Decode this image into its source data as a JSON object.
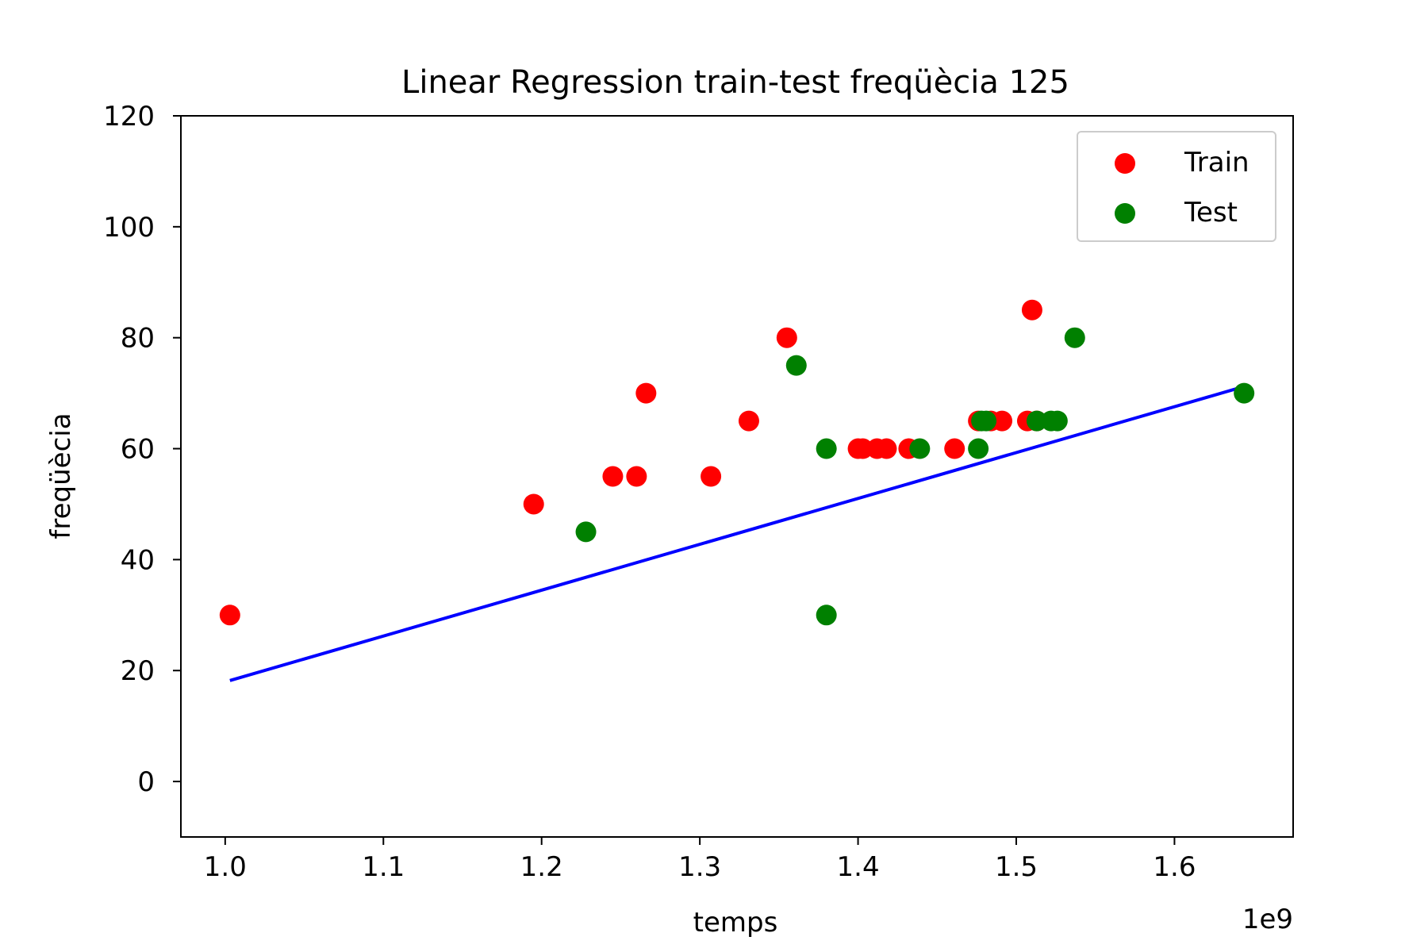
{
  "chart_data": {
    "type": "scatter",
    "title": "Linear Regression train-test freqüècia 125",
    "xlabel": "temps",
    "ylabel": "freqüècia",
    "x_offset_label": "1e9",
    "xlim": [
      0.972,
      1.675
    ],
    "ylim": [
      -10,
      120
    ],
    "x_ticks": [
      1.0,
      1.1,
      1.2,
      1.3,
      1.4,
      1.5,
      1.6
    ],
    "x_tick_labels": [
      "1.0",
      "1.1",
      "1.2",
      "1.3",
      "1.4",
      "1.5",
      "1.6"
    ],
    "y_ticks": [
      0,
      20,
      40,
      60,
      80,
      100,
      120
    ],
    "y_tick_labels": [
      "0",
      "20",
      "40",
      "60",
      "80",
      "100",
      "120"
    ],
    "grid": false,
    "legend": {
      "position": "top-right",
      "entries": [
        "Train",
        "Test"
      ]
    },
    "series": [
      {
        "name": "Train",
        "color": "#ff0000",
        "points": [
          [
            1.003,
            30
          ],
          [
            1.195,
            50
          ],
          [
            1.245,
            55
          ],
          [
            1.26,
            55
          ],
          [
            1.266,
            70
          ],
          [
            1.307,
            55
          ],
          [
            1.331,
            65
          ],
          [
            1.355,
            80
          ],
          [
            1.4,
            60
          ],
          [
            1.403,
            60
          ],
          [
            1.412,
            60
          ],
          [
            1.418,
            60
          ],
          [
            1.432,
            60
          ],
          [
            1.461,
            60
          ],
          [
            1.476,
            65
          ],
          [
            1.484,
            65
          ],
          [
            1.491,
            65
          ],
          [
            1.507,
            65
          ],
          [
            1.51,
            85
          ],
          [
            1.513,
            65
          ]
        ]
      },
      {
        "name": "Test",
        "color": "#008000",
        "points": [
          [
            1.228,
            45
          ],
          [
            1.361,
            75
          ],
          [
            1.38,
            60
          ],
          [
            1.38,
            30
          ],
          [
            1.439,
            60
          ],
          [
            1.476,
            60
          ],
          [
            1.478,
            65
          ],
          [
            1.481,
            65
          ],
          [
            1.513,
            65
          ],
          [
            1.522,
            65
          ],
          [
            1.526,
            65
          ],
          [
            1.537,
            80
          ],
          [
            1.644,
            70
          ]
        ]
      },
      {
        "name": "",
        "type": "line",
        "color": "#0000ff",
        "points": [
          [
            1.003,
            18.2
          ],
          [
            1.644,
            71.2
          ]
        ]
      }
    ]
  }
}
